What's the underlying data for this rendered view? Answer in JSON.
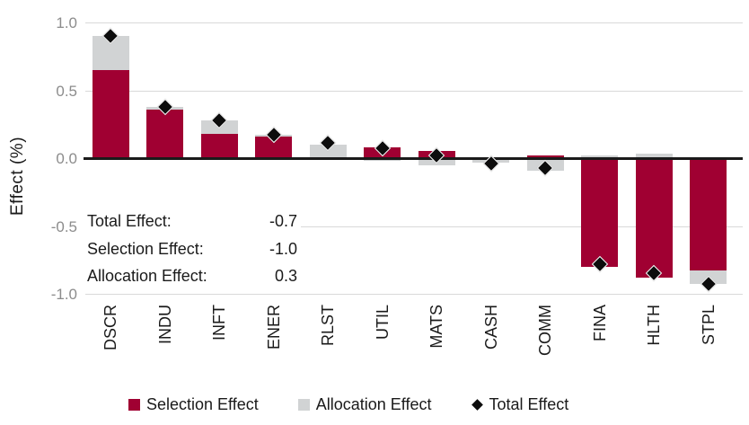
{
  "chart_data": {
    "type": "bar",
    "stacked": true,
    "title": "",
    "ylabel": "Effect (%)",
    "xlabel": "",
    "ylim": [
      -1.0,
      1.0
    ],
    "yticks": [
      1.0,
      0.5,
      0.0,
      -0.5,
      -1.0
    ],
    "grid": true,
    "legend_position": "bottom",
    "categories": [
      "DSCR",
      "INDU",
      "INFT",
      "ENER",
      "RLST",
      "UTIL",
      "MATS",
      "CASH",
      "COMM",
      "FINA",
      "HLTH",
      "STPL"
    ],
    "series": [
      {
        "name": "Selection Effect",
        "color": "#A00032",
        "values": [
          0.65,
          0.36,
          0.18,
          0.16,
          0.0,
          0.08,
          0.05,
          0.0,
          0.02,
          -0.8,
          -0.88,
          -0.83
        ]
      },
      {
        "name": "Allocation Effect",
        "color": "#D1D3D4",
        "values": [
          0.25,
          0.02,
          0.1,
          0.01,
          0.1,
          -0.02,
          -0.05,
          -0.03,
          -0.09,
          0.02,
          0.03,
          -0.1
        ]
      }
    ],
    "marker_series": {
      "name": "Total Effect",
      "marker": "diamond",
      "color": "#0d0d0d",
      "values": [
        0.9,
        0.38,
        0.28,
        0.17,
        0.11,
        0.07,
        0.02,
        -0.04,
        -0.07,
        -0.78,
        -0.85,
        -0.93
      ]
    }
  },
  "summary": {
    "rows": [
      {
        "label": "Total Effect:",
        "value": "-0.7"
      },
      {
        "label": "Selection Effect:",
        "value": "-1.0"
      },
      {
        "label": "Allocation Effect:",
        "value": "0.3"
      }
    ]
  },
  "legend": {
    "items": [
      {
        "label": "Selection Effect",
        "swatch": "square",
        "color": "#A00032"
      },
      {
        "label": "Allocation Effect",
        "swatch": "square",
        "color": "#D1D3D4"
      },
      {
        "label": "Total Effect",
        "swatch": "diamond",
        "color": "#0d0d0d"
      }
    ]
  },
  "colors": {
    "selection": "#A00032",
    "allocation": "#D1D3D4",
    "total_marker": "#0d0d0d",
    "gridline": "#d9d9d9",
    "axis": "#1a1a1a",
    "tick_text": "#8c8c8c"
  }
}
